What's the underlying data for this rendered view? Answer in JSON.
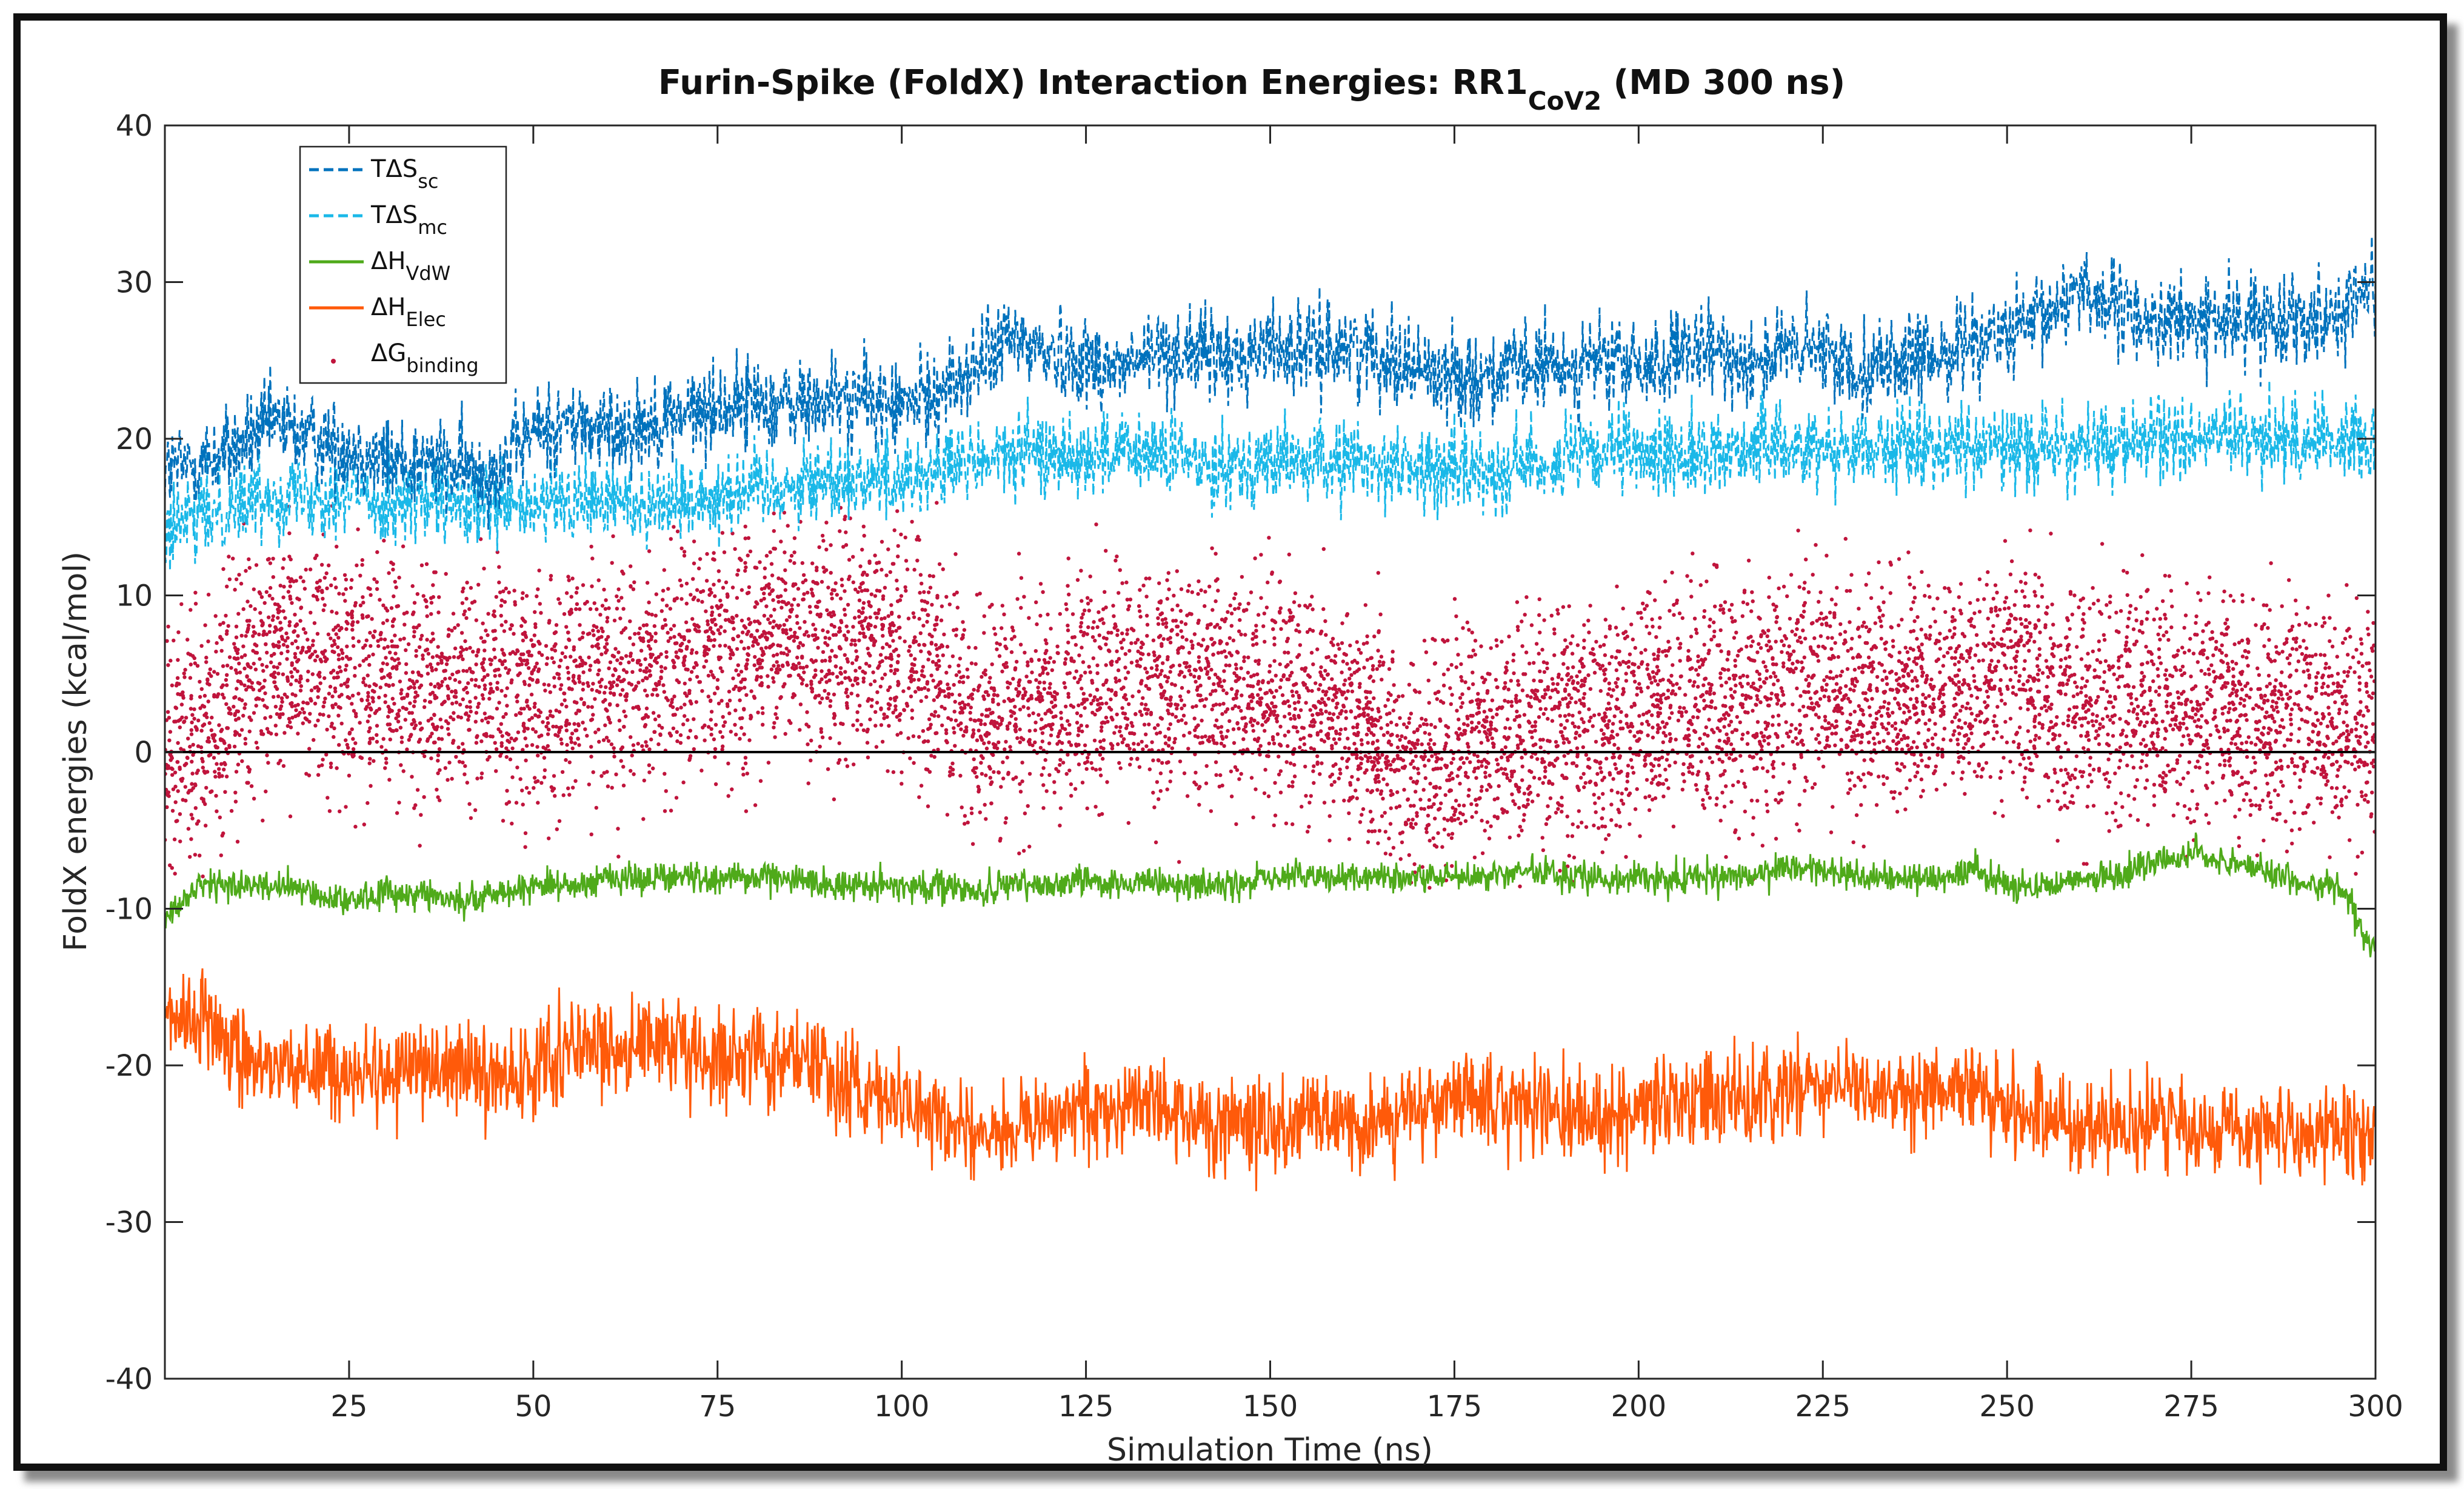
{
  "chart_data": {
    "type": "line",
    "title_main": "Furin-Spike (FoldX) Interaction Energies: RR1",
    "title_sub": "CoV2",
    "title_tail": " (MD 300 ns)",
    "xlabel": "Simulation Time (ns)",
    "ylabel": "FoldX energies (kcal/mol)",
    "xlim": [
      0,
      300
    ],
    "ylim": [
      -40,
      40
    ],
    "xticks": [
      25,
      50,
      75,
      100,
      125,
      150,
      175,
      200,
      225,
      250,
      275,
      300
    ],
    "yticks": [
      -40,
      -30,
      -20,
      -10,
      0,
      10,
      20,
      30,
      40
    ],
    "reference_line": 0,
    "legend_position": "top-left",
    "legend": [
      {
        "main": "TΔS",
        "sub": "sc",
        "style": "dashed",
        "color": "#0072BD"
      },
      {
        "main": "TΔS",
        "sub": "mc",
        "style": "dashed",
        "color": "#1AB8E8"
      },
      {
        "main": "ΔH",
        "sub": "VdW",
        "style": "solid",
        "color": "#4FAA1A"
      },
      {
        "main": "ΔH",
        "sub": "Elec",
        "style": "solid",
        "color": "#FF5A0A"
      },
      {
        "main": "ΔG",
        "sub": "binding",
        "style": "dots",
        "color": "#C0143C"
      }
    ],
    "series": [
      {
        "name": "TΔS_sc",
        "color": "#0072BD",
        "x": [
          0,
          5,
          10,
          15,
          20,
          25,
          30,
          35,
          40,
          45,
          50,
          55,
          60,
          65,
          70,
          75,
          80,
          85,
          90,
          95,
          100,
          105,
          110,
          115,
          120,
          125,
          130,
          135,
          140,
          145,
          150,
          155,
          160,
          165,
          170,
          175,
          180,
          185,
          190,
          195,
          200,
          205,
          210,
          215,
          220,
          225,
          230,
          235,
          240,
          245,
          250,
          255,
          260,
          265,
          270,
          275,
          280,
          285,
          290,
          295,
          300
        ],
        "mean": [
          18,
          18.5,
          19.5,
          21,
          20,
          19.5,
          18.5,
          18.5,
          18,
          18,
          20.5,
          21,
          20.5,
          21,
          21.5,
          22,
          22.5,
          22,
          22.5,
          22.5,
          22,
          23,
          24.5,
          26.5,
          25.5,
          25,
          24.5,
          25.5,
          25.5,
          25,
          26,
          25.5,
          26,
          25.5,
          24.5,
          24,
          24,
          24.5,
          24.5,
          25,
          24.5,
          25,
          25.5,
          25,
          25.5,
          25.5,
          24.5,
          25,
          25,
          26.5,
          26.5,
          27.5,
          30,
          28,
          27.5,
          27.5,
          27.5,
          27.5,
          28,
          28,
          30
        ],
        "noise": 2.6
      },
      {
        "name": "TΔS_mc",
        "color": "#1AB8E8",
        "x": [
          0,
          5,
          10,
          15,
          20,
          25,
          30,
          35,
          40,
          45,
          50,
          55,
          60,
          65,
          70,
          75,
          80,
          85,
          90,
          95,
          100,
          105,
          110,
          115,
          120,
          125,
          130,
          135,
          140,
          145,
          150,
          155,
          160,
          165,
          170,
          175,
          180,
          185,
          190,
          195,
          200,
          205,
          210,
          215,
          220,
          225,
          230,
          235,
          240,
          245,
          250,
          255,
          260,
          265,
          270,
          275,
          280,
          285,
          290,
          295,
          300
        ],
        "mean": [
          14,
          15,
          16,
          16.5,
          16.5,
          16.5,
          16,
          16,
          15.5,
          15.5,
          15.5,
          16,
          16,
          16,
          16,
          16.5,
          17,
          17,
          17.5,
          17.5,
          17.5,
          18,
          18.5,
          19,
          19,
          19,
          19,
          19,
          18.5,
          18.5,
          18.5,
          18.5,
          18.5,
          18.5,
          18,
          18,
          18,
          18.5,
          18.5,
          19,
          19,
          19,
          19,
          19.5,
          19.5,
          19.5,
          19.5,
          19.5,
          19.5,
          19.5,
          19.5,
          19.5,
          19.5,
          19.5,
          20,
          20,
          20,
          20,
          20,
          20,
          20
        ],
        "noise": 2.4
      },
      {
        "name": "ΔH_VdW",
        "color": "#4FAA1A",
        "x": [
          0,
          5,
          10,
          15,
          20,
          25,
          30,
          35,
          40,
          45,
          50,
          55,
          60,
          65,
          70,
          75,
          80,
          85,
          90,
          95,
          100,
          105,
          110,
          115,
          120,
          125,
          130,
          135,
          140,
          145,
          150,
          155,
          160,
          165,
          170,
          175,
          180,
          185,
          190,
          195,
          200,
          205,
          210,
          215,
          220,
          225,
          230,
          235,
          240,
          245,
          250,
          255,
          260,
          265,
          270,
          275,
          280,
          285,
          290,
          295,
          300
        ],
        "mean": [
          -10.5,
          -8.5,
          -8.5,
          -8.5,
          -9,
          -9.5,
          -9,
          -9,
          -9.5,
          -9,
          -8.5,
          -8.5,
          -8,
          -8,
          -8,
          -8,
          -8,
          -8,
          -8.5,
          -8.5,
          -8.5,
          -8.5,
          -9,
          -8.5,
          -8.5,
          -8,
          -8.5,
          -8.5,
          -8.5,
          -8.5,
          -8,
          -8,
          -8,
          -8,
          -8,
          -8,
          -8,
          -7.5,
          -8,
          -8,
          -8,
          -8,
          -8,
          -8,
          -7.5,
          -7.5,
          -8,
          -8,
          -8,
          -7.5,
          -8.5,
          -8.5,
          -8,
          -8,
          -7,
          -6.5,
          -7,
          -7.5,
          -8.5,
          -8.5,
          -13
        ],
        "noise": 0.9
      },
      {
        "name": "ΔH_Elec",
        "color": "#FF5A0A",
        "x": [
          0,
          5,
          10,
          15,
          20,
          25,
          30,
          35,
          40,
          45,
          50,
          55,
          60,
          65,
          70,
          75,
          80,
          85,
          90,
          95,
          100,
          105,
          110,
          115,
          120,
          125,
          130,
          135,
          140,
          145,
          150,
          155,
          160,
          165,
          170,
          175,
          180,
          185,
          190,
          195,
          200,
          205,
          210,
          215,
          220,
          225,
          230,
          235,
          240,
          245,
          250,
          255,
          260,
          265,
          270,
          275,
          280,
          285,
          290,
          295,
          300
        ],
        "mean": [
          -17.5,
          -16.5,
          -19.5,
          -20,
          -20,
          -21,
          -20.5,
          -20,
          -20,
          -20.5,
          -20.5,
          -19,
          -18.5,
          -18.5,
          -19.5,
          -19.5,
          -19.5,
          -19,
          -20.5,
          -22,
          -22.5,
          -23,
          -24.5,
          -24,
          -23.5,
          -22.5,
          -22.5,
          -22.5,
          -23.5,
          -23.5,
          -24,
          -23.5,
          -23.5,
          -23.5,
          -23,
          -22.5,
          -22.5,
          -22.5,
          -23,
          -23.5,
          -22.5,
          -22.5,
          -22.5,
          -22,
          -22,
          -21.5,
          -21.5,
          -21.5,
          -21.5,
          -21.5,
          -23,
          -23,
          -24,
          -24,
          -23.5,
          -24,
          -24,
          -24,
          -24.5,
          -24,
          -25
        ],
        "noise": 2.7
      },
      {
        "name": "ΔG_binding",
        "color": "#C0143C",
        "type": "scatter",
        "x": [
          0,
          5,
          10,
          15,
          20,
          25,
          30,
          35,
          40,
          45,
          50,
          55,
          60,
          65,
          70,
          75,
          80,
          85,
          90,
          95,
          100,
          105,
          110,
          115,
          120,
          125,
          130,
          135,
          140,
          145,
          150,
          155,
          160,
          165,
          170,
          175,
          180,
          185,
          190,
          195,
          200,
          205,
          210,
          215,
          220,
          225,
          230,
          235,
          240,
          245,
          250,
          255,
          260,
          265,
          270,
          275,
          280,
          285,
          290,
          295,
          300
        ],
        "mean": [
          -1,
          2,
          4,
          6,
          6,
          5,
          5,
          4.5,
          4,
          4,
          4,
          4.5,
          5,
          5,
          5.5,
          6,
          7,
          7,
          7,
          7,
          6,
          4.5,
          2,
          2.5,
          3,
          4,
          4,
          4,
          4,
          4,
          3.5,
          3,
          3,
          0.5,
          -1,
          0,
          1,
          2,
          2,
          2,
          2.5,
          3,
          3,
          3,
          3.5,
          4,
          3.5,
          3.5,
          4,
          4.5,
          5,
          4,
          3,
          3,
          3,
          3,
          3,
          2.5,
          2.5,
          2.5,
          1
        ],
        "spread": 3.6,
        "min": -9,
        "max": 16
      }
    ]
  }
}
